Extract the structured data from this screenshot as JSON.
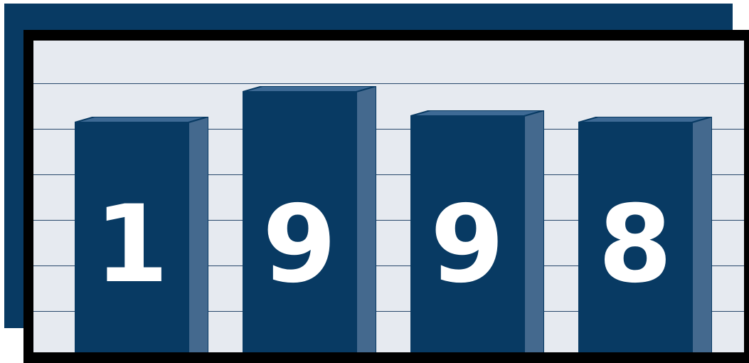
{
  "colors": {
    "navy": "#083a63",
    "bar_side": "#44698e",
    "bar_top": "#3e6a95",
    "plot_bg": "#e6eaf0",
    "gridline": "#27476b",
    "frame": "#000000",
    "digit": "#ffffff"
  },
  "bars": [
    {
      "digit": "1",
      "level": 0.78
    },
    {
      "digit": "9",
      "level": 0.88
    },
    {
      "digit": "9",
      "level": 0.8
    },
    {
      "digit": "8",
      "level": 0.78
    }
  ],
  "gridline_count": 6
}
